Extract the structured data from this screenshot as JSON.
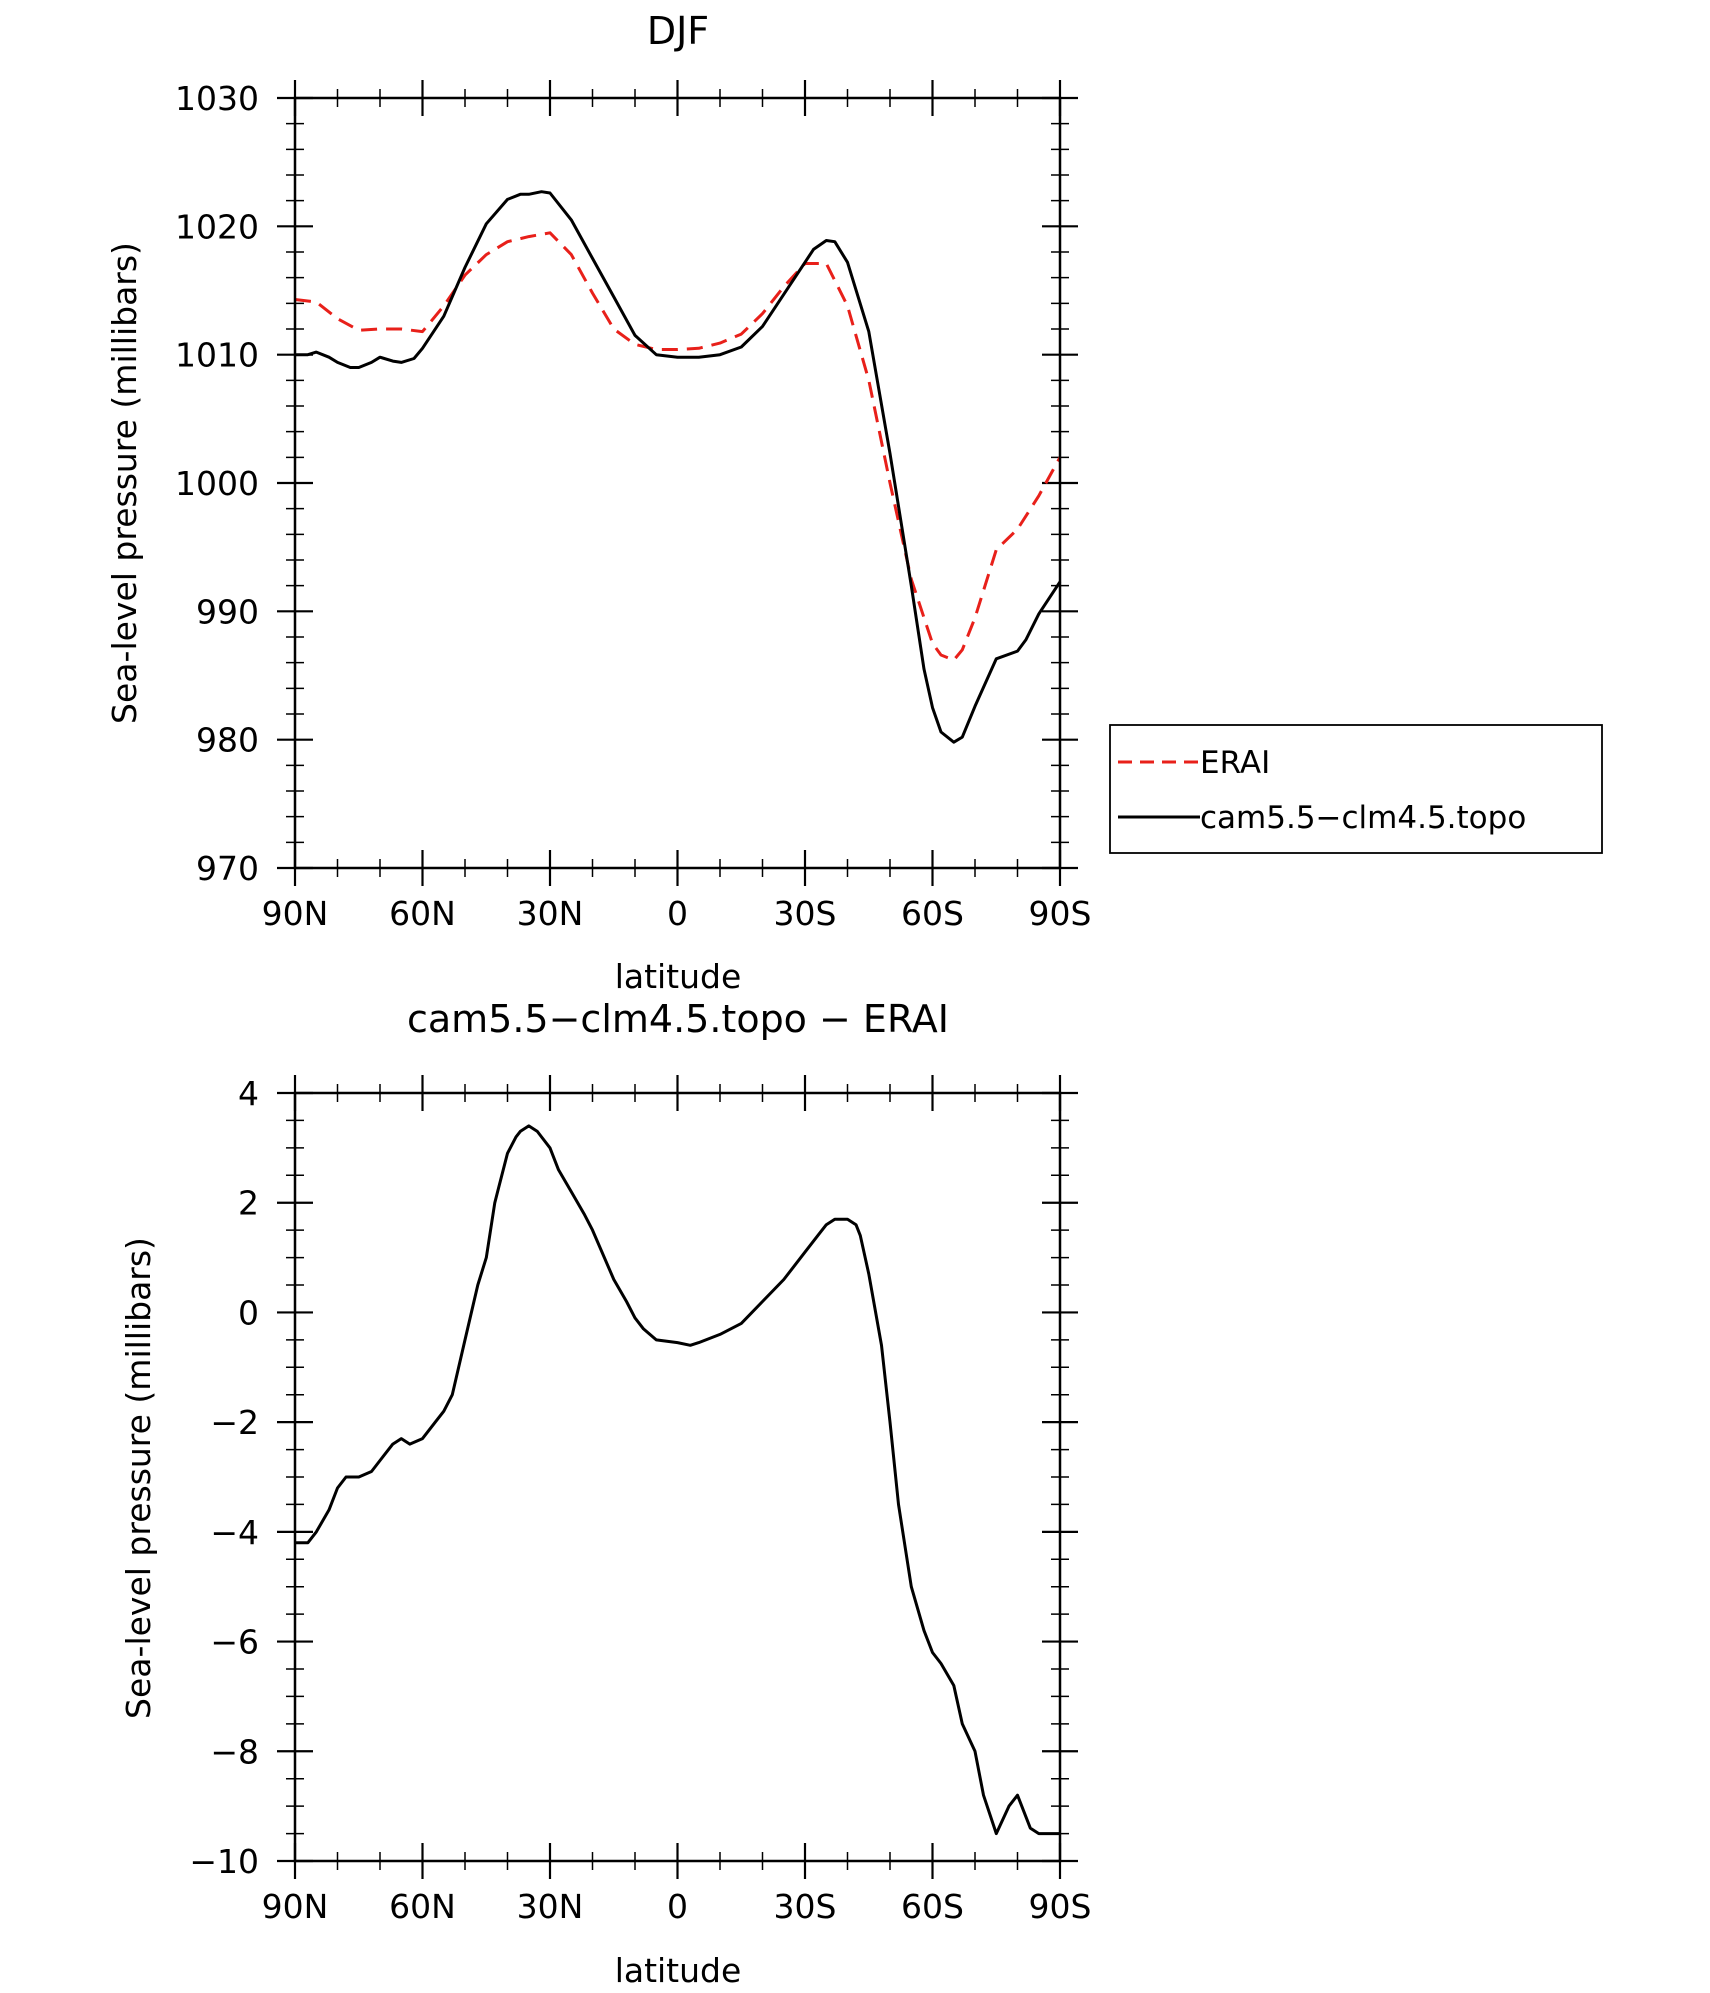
{
  "chart_data": [
    {
      "type": "line",
      "title": "DJF",
      "xlabel": "latitude",
      "ylabel": "Sea-level pressure (millibars)",
      "xlim": [
        90,
        -90
      ],
      "ylim": [
        970,
        1030
      ],
      "x_ticks": [
        90,
        60,
        30,
        0,
        -30,
        -60,
        -90
      ],
      "x_tick_labels": [
        "90N",
        "60N",
        "30N",
        "0",
        "30S",
        "60S",
        "90S"
      ],
      "y_ticks": [
        970,
        980,
        990,
        1000,
        1010,
        1020,
        1030
      ],
      "y_tick_labels": [
        "970",
        "980",
        "990",
        "1000",
        "1010",
        "1020",
        "1030"
      ],
      "legend_position": "right",
      "series": [
        {
          "name": "ERAI",
          "color": "#e8201a",
          "dash": "dashed",
          "x": [
            90,
            85,
            80,
            75,
            70,
            65,
            60,
            55,
            50,
            45,
            40,
            35,
            30,
            25,
            20,
            15,
            10,
            5,
            0,
            -5,
            -10,
            -15,
            -20,
            -25,
            -30,
            -35,
            -40,
            -45,
            -50,
            -55,
            -60,
            -62,
            -65,
            -67,
            -70,
            -75,
            -80,
            -85,
            -90
          ],
          "y": [
            1014.3,
            1014.1,
            1012.8,
            1011.9,
            1012.0,
            1012.0,
            1011.8,
            1013.8,
            1016.2,
            1017.8,
            1018.8,
            1019.2,
            1019.5,
            1017.8,
            1014.8,
            1012.0,
            1010.8,
            1010.4,
            1010.4,
            1010.5,
            1010.9,
            1011.6,
            1013.2,
            1015.3,
            1017.1,
            1017.1,
            1013.8,
            1008.0,
            1000.0,
            992.5,
            987.5,
            986.6,
            986.2,
            987.0,
            989.5,
            994.8,
            996.4,
            999.0,
            1002.0
          ]
        },
        {
          "name": "cam5.5−clm4.5.topo",
          "color": "#000000",
          "dash": "solid",
          "x": [
            90,
            87,
            85,
            82,
            80,
            77,
            75,
            72,
            70,
            67,
            65,
            62,
            60,
            55,
            50,
            45,
            40,
            37,
            35,
            32,
            30,
            25,
            20,
            15,
            10,
            5,
            0,
            -5,
            -10,
            -15,
            -20,
            -25,
            -30,
            -32,
            -35,
            -37,
            -40,
            -45,
            -50,
            -55,
            -58,
            -60,
            -62,
            -65,
            -67,
            -70,
            -75,
            -80,
            -82,
            -85,
            -90
          ],
          "y": [
            1010.0,
            1010.0,
            1010.2,
            1009.8,
            1009.4,
            1009.0,
            1009.0,
            1009.4,
            1009.8,
            1009.5,
            1009.4,
            1009.7,
            1010.5,
            1013.0,
            1016.8,
            1020.2,
            1022.1,
            1022.5,
            1022.5,
            1022.7,
            1022.6,
            1020.5,
            1017.5,
            1014.5,
            1011.5,
            1010.0,
            1009.8,
            1009.8,
            1010.0,
            1010.6,
            1012.2,
            1014.7,
            1017.2,
            1018.2,
            1018.9,
            1018.8,
            1017.2,
            1011.8,
            1002.3,
            992.0,
            985.5,
            982.5,
            980.6,
            979.8,
            980.2,
            982.6,
            986.3,
            986.9,
            987.8,
            989.8,
            992.3
          ]
        }
      ]
    },
    {
      "type": "line",
      "title": "cam5.5−clm4.5.topo − ERAI",
      "xlabel": "latitude",
      "ylabel": "Sea-level pressure (millibars)",
      "xlim": [
        90,
        -90
      ],
      "ylim": [
        -10,
        4
      ],
      "x_ticks": [
        90,
        60,
        30,
        0,
        -30,
        -60,
        -90
      ],
      "x_tick_labels": [
        "90N",
        "60N",
        "30N",
        "0",
        "30S",
        "60S",
        "90S"
      ],
      "y_ticks": [
        -10,
        -8,
        -6,
        -4,
        -2,
        0,
        2,
        4
      ],
      "y_tick_labels": [
        "−10",
        "−8",
        "−6",
        "−4",
        "−2",
        "0",
        "2",
        "4"
      ],
      "series": [
        {
          "color": "#000000",
          "dash": "solid",
          "x": [
            90,
            88,
            87,
            85,
            82,
            80,
            78,
            75,
            72,
            70,
            67,
            65,
            63,
            60,
            57,
            55,
            53,
            50,
            47,
            45,
            43,
            42,
            40,
            38,
            37,
            35,
            33,
            32,
            30,
            28,
            25,
            22,
            20,
            15,
            12,
            10,
            8,
            5,
            0,
            -3,
            -5,
            -10,
            -15,
            -20,
            -25,
            -30,
            -33,
            -35,
            -37,
            -40,
            -42,
            -43,
            -45,
            -48,
            -50,
            -52,
            -55,
            -58,
            -60,
            -62,
            -65,
            -67,
            -70,
            -72,
            -75,
            -78,
            -80,
            -83,
            -85,
            -88,
            -90
          ],
          "y": [
            -4.2,
            -4.2,
            -4.2,
            -4.0,
            -3.6,
            -3.2,
            -3.0,
            -3.0,
            -2.9,
            -2.7,
            -2.4,
            -2.3,
            -2.4,
            -2.3,
            -2.0,
            -1.8,
            -1.5,
            -0.5,
            0.5,
            1.0,
            2.0,
            2.3,
            2.9,
            3.2,
            3.3,
            3.4,
            3.3,
            3.2,
            3.0,
            2.6,
            2.2,
            1.8,
            1.5,
            0.6,
            0.2,
            -0.1,
            -0.3,
            -0.5,
            -0.55,
            -0.6,
            -0.55,
            -0.4,
            -0.2,
            0.2,
            0.6,
            1.1,
            1.4,
            1.6,
            1.7,
            1.7,
            1.6,
            1.4,
            0.7,
            -0.6,
            -2.0,
            -3.5,
            -5.0,
            -5.8,
            -6.2,
            -6.4,
            -6.8,
            -7.5,
            -8.0,
            -8.8,
            -9.5,
            -9.0,
            -8.8,
            -9.4,
            -9.5,
            -9.5,
            -9.5
          ]
        }
      ]
    }
  ]
}
